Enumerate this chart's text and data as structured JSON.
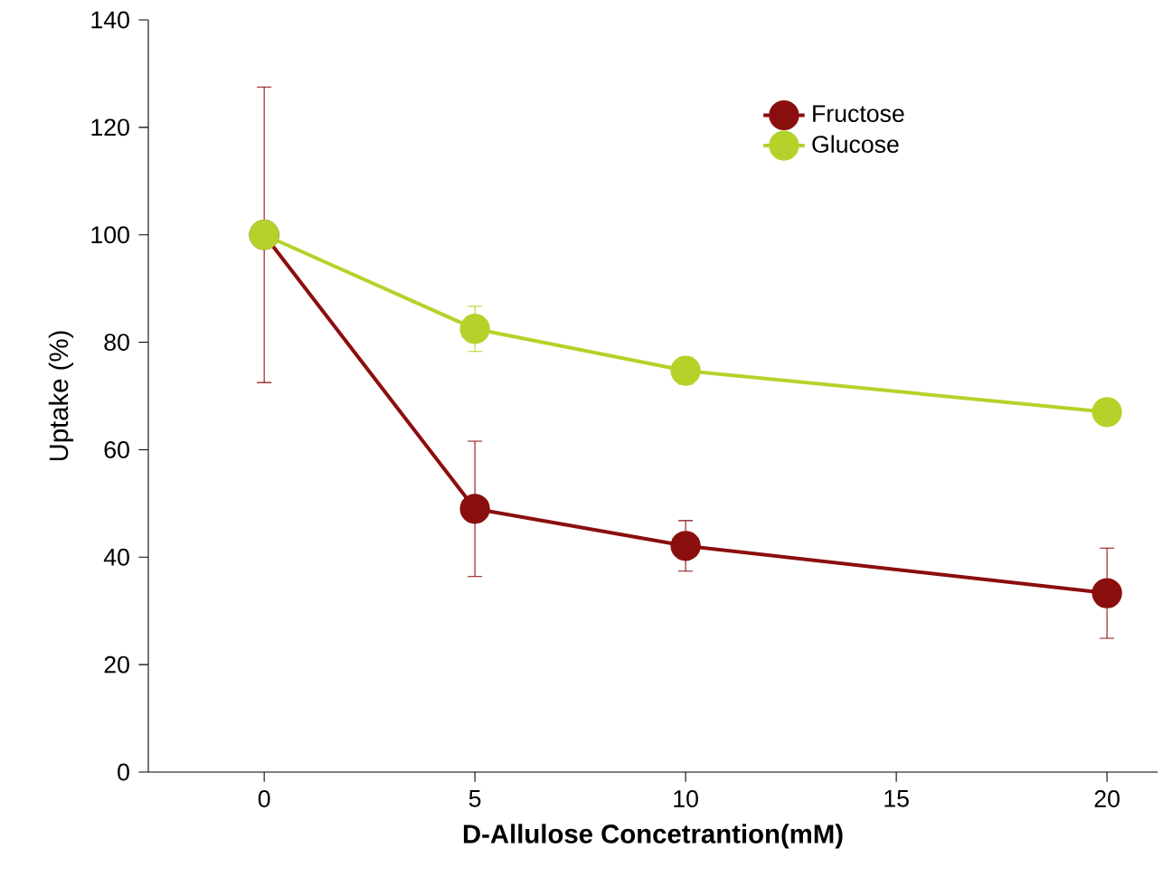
{
  "chart_data": {
    "type": "line",
    "xlabel": "D-Allulose Concetrantion(mM)",
    "ylabel": "Uptake (%)",
    "xlim": [
      -2.75,
      21.2
    ],
    "ylim": [
      0,
      140
    ],
    "xticks": [
      0,
      5,
      10,
      15,
      20
    ],
    "yticks": [
      0,
      20,
      40,
      60,
      80,
      100,
      120,
      140
    ],
    "x": [
      0,
      5,
      10,
      20
    ],
    "series": [
      {
        "name": "Fructose",
        "color": "#8b0e0e",
        "values": [
          100,
          49,
          42.1,
          33.3
        ],
        "errors": [
          27.5,
          12.6,
          4.7,
          8.4
        ]
      },
      {
        "name": "Glucose",
        "color": "#b5d22a",
        "values": [
          100,
          82.5,
          74.7,
          67
        ],
        "errors": [
          null,
          4.2,
          2.5,
          null
        ]
      }
    ],
    "marker": "circle",
    "line_style": "solid",
    "grid": false,
    "legend": "top right"
  }
}
